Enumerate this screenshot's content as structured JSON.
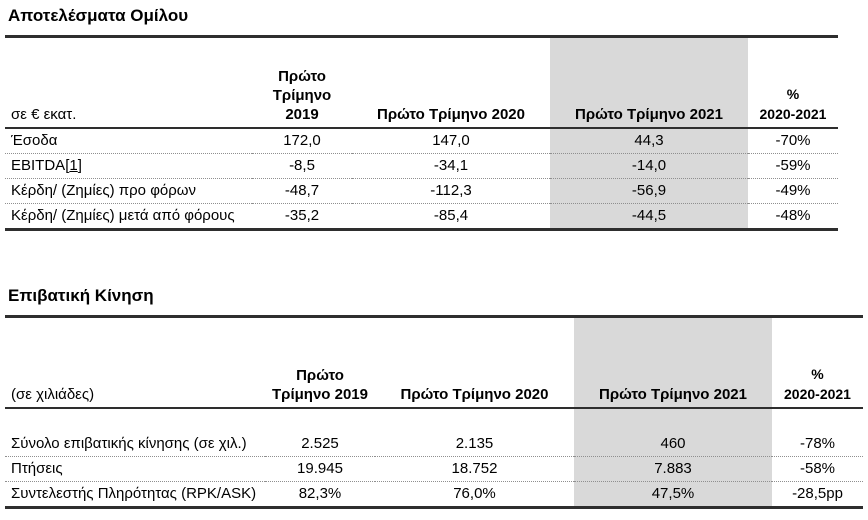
{
  "colors": {
    "highlight_column": "#d9d9d9"
  },
  "group_results": {
    "title": "Αποτελέσματα Ομίλου",
    "unit_label": "σε € εκατ.",
    "headers": {
      "q1_2019": "Πρώτο Τρίμηνο 2019",
      "q1_2020": "Πρώτο Τρίμηνο 2020",
      "q1_2021": "Πρώτο Τρίμηνο 2021",
      "pct_symbol": "%",
      "pct_period": "2020-2021"
    },
    "rows": [
      {
        "label": "Έσοδα",
        "q1_2019": "172,0",
        "q1_2020": "147,0",
        "q1_2021": "44,3",
        "pct_change": "-70%"
      },
      {
        "label": "EBITDA",
        "footnote_ref": {
          "open": "[",
          "num": "1",
          "close": "]"
        },
        "q1_2019": "-8,5",
        "q1_2020": "-34,1",
        "q1_2021": "-14,0",
        "pct_change": "-59%"
      },
      {
        "label": "Κέρδη/ (Ζημίες) προ φόρων",
        "q1_2019": "-48,7",
        "q1_2020": "-112,3",
        "q1_2021": "-56,9",
        "pct_change": "-49%"
      },
      {
        "label": "Κέρδη/ (Ζημίες) μετά από φόρους",
        "q1_2019": "-35,2",
        "q1_2020": "-85,4",
        "q1_2021": "-44,5",
        "pct_change": "-48%"
      }
    ]
  },
  "passenger_traffic": {
    "title": "Επιβατική Κίνηση",
    "unit_label": "(σε χιλιάδες)",
    "headers": {
      "q1_2019": "Πρώτο Τρίμηνο 2019",
      "q1_2020": "Πρώτο Τρίμηνο 2020",
      "q1_2021": "Πρώτο Τρίμηνο 2021",
      "pct_symbol": "%",
      "pct_period": "2020-2021"
    },
    "rows": [
      {
        "label": "Σύνολο επιβατικής κίνησης (σε χιλ.)",
        "q1_2019": "2.525",
        "q1_2020": "2.135",
        "q1_2021": "460",
        "pct_change": "-78%"
      },
      {
        "label": "Πτήσεις",
        "q1_2019": "19.945",
        "q1_2020": "18.752",
        "q1_2021": "7.883",
        "pct_change": "-58%"
      },
      {
        "label": "Συντελεστής Πληρότητας (RPK/ASK)",
        "q1_2019": "82,3%",
        "q1_2020": "76,0%",
        "q1_2021": "47,5%",
        "pct_change": "-28,5pp"
      }
    ]
  }
}
